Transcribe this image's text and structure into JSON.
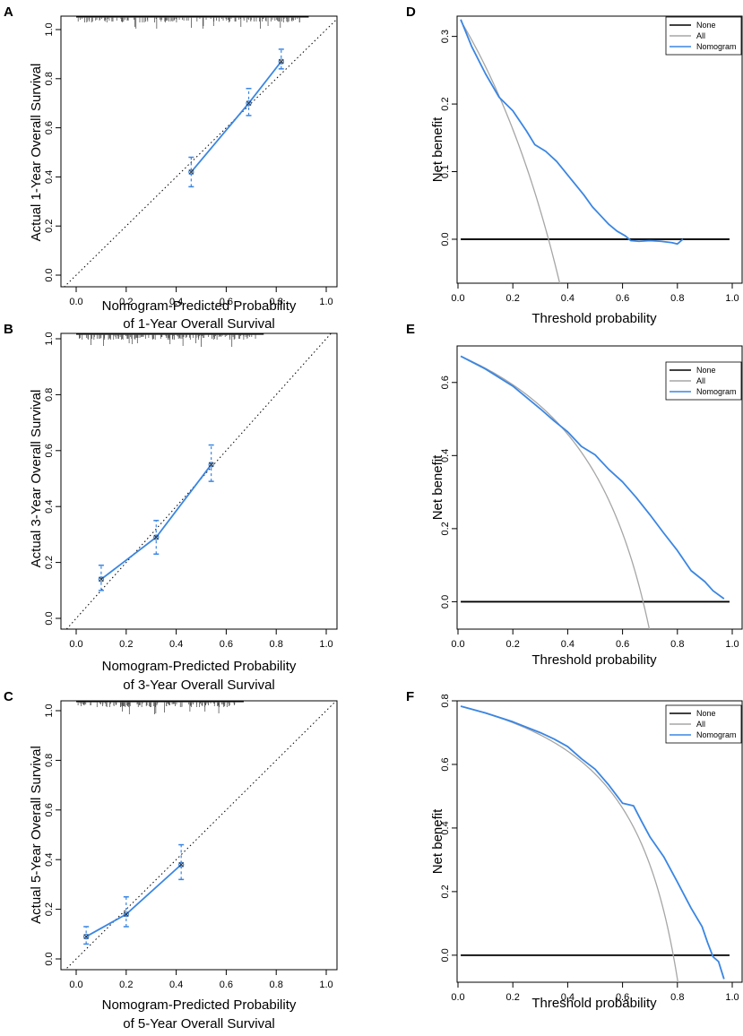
{
  "chart_data": [
    {
      "panel": "A",
      "type": "line",
      "kind": "calibration",
      "ylabel": "Actual 1-Year Overall Survival",
      "xlabel_line1": "Nomogram-Predicted Probability",
      "xlabel_line2": "of 1-Year Overall Survival",
      "xlim": [
        0,
        1
      ],
      "ylim": [
        0,
        1
      ],
      "xticks": [
        "0.0",
        "0.2",
        "0.4",
        "0.6",
        "0.8",
        "1.0"
      ],
      "yticks": [
        "0.0",
        "0.2",
        "0.4",
        "0.6",
        "0.8",
        "1.0"
      ],
      "reference": "dotted 45-degree line",
      "points": [
        {
          "x": 0.46,
          "y": 0.42,
          "lo": 0.36,
          "hi": 0.48
        },
        {
          "x": 0.69,
          "y": 0.7,
          "lo": 0.65,
          "hi": 0.76
        },
        {
          "x": 0.82,
          "y": 0.87,
          "lo": 0.84,
          "hi": 0.92
        }
      ],
      "rug_xmax": 0.9
    },
    {
      "panel": "B",
      "type": "line",
      "kind": "calibration",
      "ylabel": "Actual 3-Year Overall Survival",
      "xlabel_line1": "Nomogram-Predicted Probability",
      "xlabel_line2": "of 3-Year Overall Survival",
      "xlim": [
        0,
        1
      ],
      "ylim": [
        0,
        1
      ],
      "xticks": [
        "0.0",
        "0.2",
        "0.4",
        "0.6",
        "0.8",
        "1.0"
      ],
      "yticks": [
        "0.0",
        "0.2",
        "0.4",
        "0.6",
        "0.8",
        "1.0"
      ],
      "reference": "dotted 45-degree line",
      "points": [
        {
          "x": 0.1,
          "y": 0.14,
          "lo": 0.1,
          "hi": 0.19
        },
        {
          "x": 0.32,
          "y": 0.29,
          "lo": 0.23,
          "hi": 0.35
        },
        {
          "x": 0.54,
          "y": 0.55,
          "lo": 0.49,
          "hi": 0.62
        }
      ],
      "rug_xmax": 0.72
    },
    {
      "panel": "C",
      "type": "line",
      "kind": "calibration",
      "ylabel": "Actual 5-Year Overall Survival",
      "xlabel_line1": "Nomogram-Predicted Probability",
      "xlabel_line2": "of 5-Year Overall Survival",
      "xlim": [
        0,
        1
      ],
      "ylim": [
        0,
        1
      ],
      "xticks": [
        "0.0",
        "0.2",
        "0.4",
        "0.6",
        "0.8",
        "1.0"
      ],
      "yticks": [
        "0.0",
        "0.2",
        "0.4",
        "0.6",
        "0.8",
        "1.0"
      ],
      "reference": "dotted 45-degree line",
      "points": [
        {
          "x": 0.04,
          "y": 0.09,
          "lo": 0.06,
          "hi": 0.13
        },
        {
          "x": 0.2,
          "y": 0.18,
          "lo": 0.13,
          "hi": 0.25
        },
        {
          "x": 0.42,
          "y": 0.38,
          "lo": 0.32,
          "hi": 0.46
        }
      ],
      "rug_xmax": 0.64
    },
    {
      "panel": "D",
      "type": "line",
      "kind": "decision-curve",
      "xlabel": "Threshold probability",
      "ylabel": "Net benefit",
      "xlim": [
        0,
        1
      ],
      "ylim": [
        -0.065,
        0.33
      ],
      "xticks": [
        "0.0",
        "0.2",
        "0.4",
        "0.6",
        "0.8",
        "1.0"
      ],
      "yticks": [
        0.0,
        0.1,
        0.2,
        0.3
      ],
      "ytick_labels": [
        "0.0",
        "0.1",
        "0.2",
        "0.3"
      ],
      "prevalence": 0.33,
      "legend": [
        "None",
        "All",
        "Nomogram"
      ],
      "nomogram": {
        "x": [
          0.01,
          0.05,
          0.1,
          0.15,
          0.2,
          0.25,
          0.28,
          0.32,
          0.36,
          0.4,
          0.43,
          0.46,
          0.49,
          0.52,
          0.55,
          0.58,
          0.61,
          0.63,
          0.66,
          0.7,
          0.74,
          0.78,
          0.8,
          0.82
        ],
        "y": [
          0.325,
          0.285,
          0.245,
          0.21,
          0.19,
          0.16,
          0.14,
          0.13,
          0.115,
          0.095,
          0.08,
          0.065,
          0.048,
          0.035,
          0.022,
          0.012,
          0.005,
          -0.002,
          -0.003,
          -0.002,
          -0.003,
          -0.005,
          -0.007,
          0.0
        ]
      }
    },
    {
      "panel": "E",
      "type": "line",
      "kind": "decision-curve",
      "xlabel": "Threshold probability",
      "ylabel": "Net benefit",
      "xlim": [
        0,
        1
      ],
      "ylim": [
        -0.075,
        0.7
      ],
      "xticks": [
        "0.0",
        "0.2",
        "0.4",
        "0.6",
        "0.8",
        "1.0"
      ],
      "yticks": [
        0.0,
        0.2,
        0.4,
        0.6
      ],
      "ytick_labels": [
        "0.0",
        "0.2",
        "0.4",
        "0.6"
      ],
      "prevalence": 0.675,
      "legend": [
        "None",
        "All",
        "Nomogram"
      ],
      "nomogram": {
        "x": [
          0.01,
          0.1,
          0.2,
          0.3,
          0.35,
          0.4,
          0.45,
          0.5,
          0.55,
          0.6,
          0.65,
          0.7,
          0.75,
          0.8,
          0.85,
          0.9,
          0.93,
          0.97
        ],
        "y": [
          0.672,
          0.637,
          0.59,
          0.528,
          0.495,
          0.465,
          0.425,
          0.402,
          0.362,
          0.328,
          0.285,
          0.238,
          0.188,
          0.14,
          0.085,
          0.055,
          0.03,
          0.008
        ]
      }
    },
    {
      "panel": "F",
      "type": "line",
      "kind": "decision-curve",
      "xlabel": "Threshold probability",
      "ylabel": "Net benefit",
      "xlim": [
        0,
        1
      ],
      "ylim": [
        -0.085,
        0.8
      ],
      "xticks": [
        "0.0",
        "0.2",
        "0.4",
        "0.6",
        "0.8",
        "1.0"
      ],
      "yticks": [
        0.0,
        0.2,
        0.4,
        0.6,
        0.8
      ],
      "ytick_labels": [
        "0.0",
        "0.2",
        "0.4",
        "0.6",
        "0.8"
      ],
      "prevalence": 0.785,
      "legend": [
        "None",
        "All",
        "Nomogram"
      ],
      "nomogram": {
        "x": [
          0.01,
          0.1,
          0.2,
          0.3,
          0.35,
          0.4,
          0.45,
          0.5,
          0.55,
          0.6,
          0.64,
          0.67,
          0.7,
          0.75,
          0.8,
          0.85,
          0.89,
          0.91,
          0.93,
          0.95,
          0.97
        ],
        "y": [
          0.783,
          0.762,
          0.734,
          0.7,
          0.68,
          0.656,
          0.618,
          0.585,
          0.535,
          0.478,
          0.47,
          0.42,
          0.372,
          0.31,
          0.23,
          0.148,
          0.09,
          0.04,
          -0.005,
          -0.02,
          -0.075
        ]
      }
    }
  ]
}
